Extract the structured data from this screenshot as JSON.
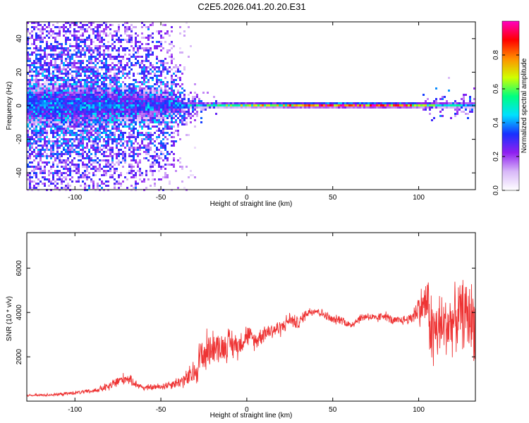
{
  "title": "C2E5.2026.041.20.20.E31",
  "chart_data": [
    {
      "type": "heatmap",
      "name": "spectrogram",
      "xlabel": "Height of straight line (km)",
      "ylabel": "Frequency (Hz)",
      "xlim": [
        -128,
        133
      ],
      "ylim": [
        -50,
        50
      ],
      "xticks": [
        -100,
        -50,
        0,
        50,
        100
      ],
      "xtick_labels": [
        "-100",
        "-50",
        "0",
        "50",
        "100"
      ],
      "yticks": [
        -40,
        -20,
        0,
        20,
        40
      ],
      "ytick_labels": [
        "-40",
        "-20",
        "0",
        "20",
        "40"
      ],
      "colorbar": {
        "label": "Normalized spectral amplitude",
        "range": [
          0,
          1
        ],
        "ticks": [
          0.0,
          0.2,
          0.4,
          0.6,
          0.8
        ],
        "tick_labels": [
          "0.0",
          "0.2",
          "0.4",
          "0.6",
          "0.8"
        ],
        "colors": [
          "#ffffff",
          "#d8b8f8",
          "#9020f0",
          "#1830ff",
          "#00e0ff",
          "#00ff80",
          "#d0ff00",
          "#ff9000",
          "#ff0000",
          "#ff00c0"
        ]
      },
      "band": {
        "center_hz": 1,
        "description_points": [
          {
            "x": -100,
            "spread": 40,
            "amp": 0.35
          },
          {
            "x": -50,
            "spread": 30,
            "amp": 0.3
          },
          {
            "x": -35,
            "spread": 5,
            "amp": 0.45
          },
          {
            "x": -10,
            "spread": 2,
            "amp": 0.6
          },
          {
            "x": 20,
            "spread": 1.5,
            "amp": 0.75
          },
          {
            "x": 55,
            "spread": 1.5,
            "amp": 0.95
          },
          {
            "x": 90,
            "spread": 1.5,
            "amp": 0.9
          },
          {
            "x": 110,
            "spread": 4,
            "amp": 0.5
          },
          {
            "x": 130,
            "spread": 4,
            "amp": 0.5
          }
        ]
      }
    },
    {
      "type": "line",
      "name": "snr",
      "xlabel": "Height of straight line (km)",
      "ylabel": "SNR (10 * v/v)",
      "xlim": [
        -128,
        133
      ],
      "ylim": [
        0,
        7600
      ],
      "xticks": [
        -100,
        -50,
        0,
        50,
        100
      ],
      "xtick_labels": [
        "-100",
        "-50",
        "0",
        "50",
        "100"
      ],
      "yticks": [
        2000,
        4000,
        6000
      ],
      "ytick_labels": [
        "2000",
        "4000",
        "6000"
      ],
      "color": "#ee3333",
      "series": [
        {
          "name": "SNR",
          "x": [
            -128,
            -110,
            -90,
            -80,
            -75,
            -70,
            -65,
            -60,
            -50,
            -40,
            -35,
            -30,
            -27,
            -25,
            -20,
            -15,
            -10,
            -5,
            0,
            5,
            10,
            20,
            25,
            30,
            35,
            40,
            45,
            50,
            55,
            60,
            65,
            70,
            75,
            80,
            85,
            90,
            95,
            97,
            100,
            104,
            105,
            108,
            110,
            115,
            120,
            125,
            130,
            133
          ],
          "y": [
            250,
            300,
            450,
            650,
            900,
            1050,
            800,
            600,
            650,
            850,
            1000,
            1300,
            2000,
            2100,
            2500,
            2400,
            2600,
            2500,
            3000,
            2700,
            3100,
            3300,
            3700,
            3500,
            4000,
            4100,
            3900,
            3650,
            3700,
            3400,
            3700,
            3850,
            3700,
            3900,
            3600,
            3650,
            3700,
            3900,
            4200,
            4400,
            4500,
            2900,
            3200,
            3400,
            3600,
            4000,
            3800,
            3500
          ],
          "noise": [
            60,
            80,
            120,
            250,
            350,
            300,
            220,
            150,
            200,
            300,
            500,
            800,
            1200,
            1300,
            900,
            800,
            900,
            700,
            600,
            500,
            500,
            450,
            400,
            350,
            300,
            250,
            250,
            250,
            250,
            250,
            250,
            250,
            250,
            250,
            250,
            250,
            300,
            500,
            900,
            1300,
            1500,
            2400,
            2000,
            1800,
            1700,
            1800,
            2000,
            2000
          ]
        }
      ]
    }
  ]
}
